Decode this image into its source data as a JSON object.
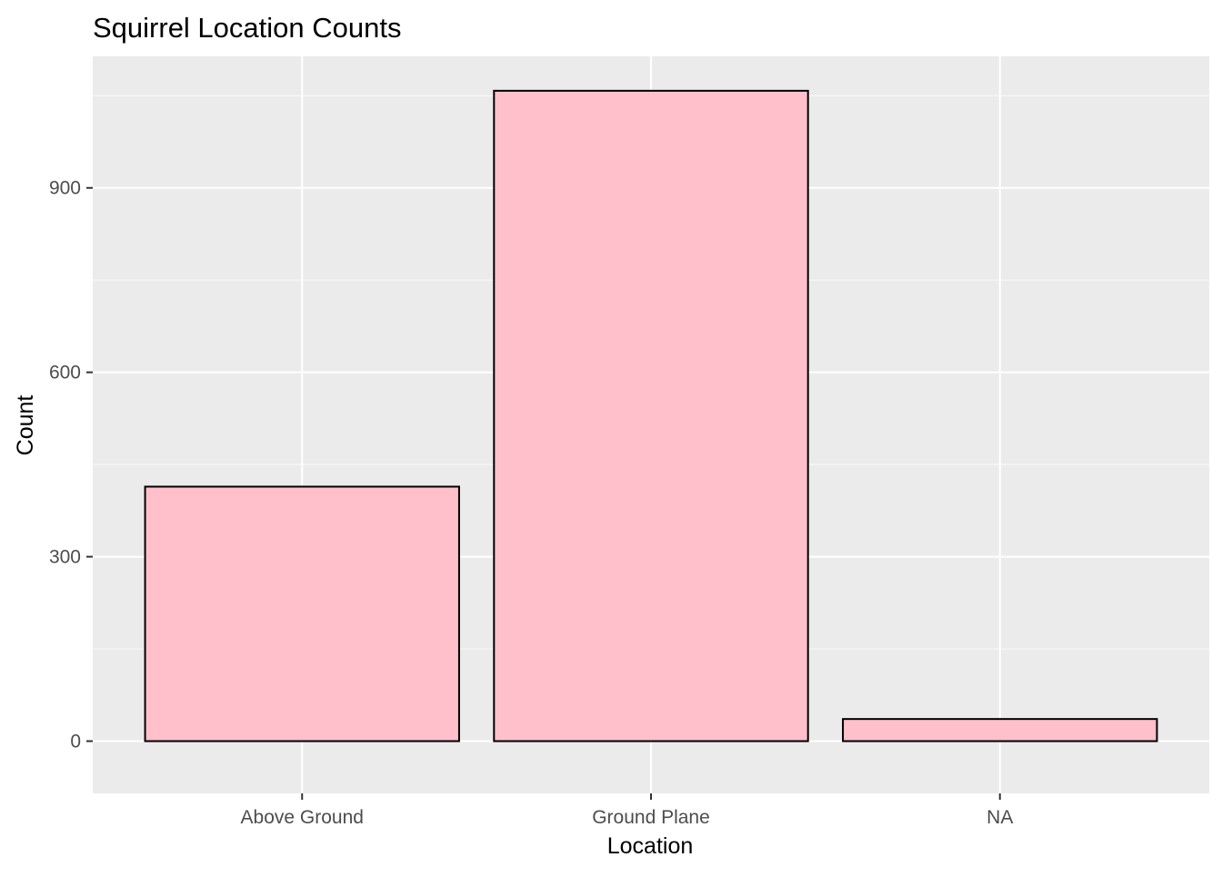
{
  "chart_data": {
    "type": "bar",
    "title": "Squirrel Location Counts",
    "xlabel": "Location",
    "ylabel": "Count",
    "categories": [
      "Above Ground",
      "Ground Plane",
      "NA"
    ],
    "values": [
      414,
      1058,
      36
    ],
    "ylim": [
      -85,
      1114
    ],
    "yticks": [
      0,
      300,
      600,
      900
    ],
    "ytick_labels": [
      "0",
      "300",
      "600",
      "900"
    ],
    "grid": true,
    "legend": "none",
    "colors": {
      "bar_fill": "#FFC0CB",
      "bar_stroke": "#000000",
      "panel_background": "#EBEBEB",
      "grid_major": "#FFFFFF",
      "grid_minor": "#F7F7F7",
      "tick_text": "#4D4D4D"
    }
  }
}
